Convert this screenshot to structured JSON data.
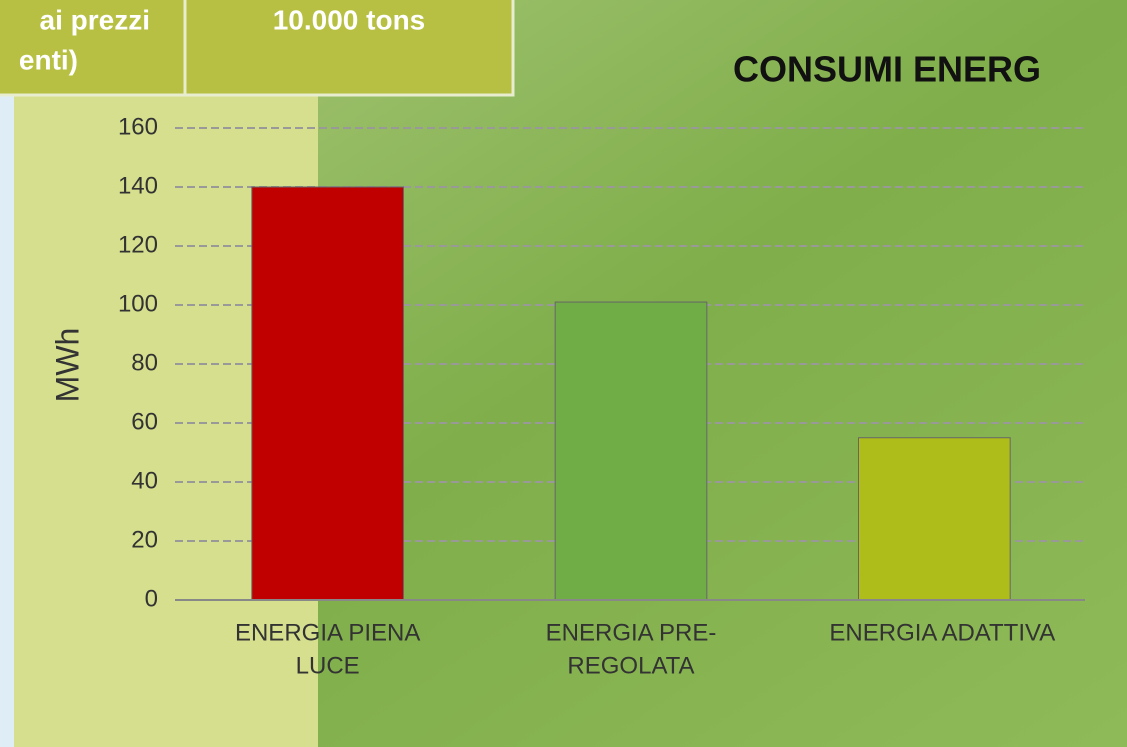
{
  "table": {
    "cells": [
      [
        "ai prezzi",
        "enti)"
      ],
      [
        "10.000 tons"
      ]
    ]
  },
  "chart_data": {
    "type": "bar",
    "title": "CONSUMI ENERG",
    "ylabel": "MWh",
    "categories": [
      [
        "ENERGIA PIENA",
        "LUCE"
      ],
      [
        "ENERGIA PRE-",
        "REGOLATA"
      ],
      [
        "ENERGIA ADATTIVA"
      ]
    ],
    "values": [
      140,
      101,
      55
    ],
    "colors": [
      "#c00000",
      "#70ad47",
      "#afbd1b"
    ],
    "ylim": [
      0,
      160
    ],
    "yticks": [
      0,
      20,
      40,
      60,
      80,
      100,
      120,
      140,
      160
    ],
    "grid": true
  }
}
